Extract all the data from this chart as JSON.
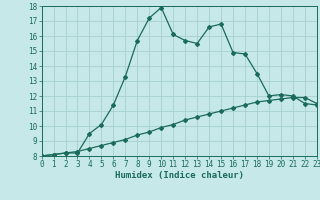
{
  "xlabel": "Humidex (Indice chaleur)",
  "bg_color": "#c6e8e8",
  "grid_color": "#a8d0d0",
  "line_color": "#1a6b5a",
  "x_min": 0,
  "x_max": 23,
  "y_min": 8,
  "y_max": 18,
  "curve1_x": [
    0,
    1,
    2,
    3,
    4,
    5,
    6,
    7,
    8,
    9,
    10,
    11,
    12,
    13,
    14,
    15,
    16,
    17,
    18,
    19,
    20,
    21,
    22,
    23
  ],
  "curve1_y": [
    8.0,
    8.1,
    8.2,
    8.2,
    9.5,
    10.1,
    11.4,
    13.3,
    15.7,
    17.2,
    17.9,
    16.1,
    15.7,
    15.5,
    16.6,
    16.8,
    14.9,
    14.8,
    13.5,
    12.0,
    12.1,
    12.0,
    11.5,
    11.4
  ],
  "curve2_x": [
    0,
    1,
    2,
    3,
    4,
    5,
    6,
    7,
    8,
    9,
    10,
    11,
    12,
    13,
    14,
    15,
    16,
    17,
    18,
    19,
    20,
    21,
    22,
    23
  ],
  "curve2_y": [
    8.0,
    8.1,
    8.2,
    8.3,
    8.5,
    8.7,
    8.9,
    9.1,
    9.4,
    9.6,
    9.9,
    10.1,
    10.4,
    10.6,
    10.8,
    11.0,
    11.2,
    11.4,
    11.6,
    11.7,
    11.8,
    11.9,
    11.9,
    11.5
  ],
  "tick_fontsize": 5.5,
  "xlabel_fontsize": 6.5,
  "marker_size": 2.0,
  "linewidth": 0.9
}
